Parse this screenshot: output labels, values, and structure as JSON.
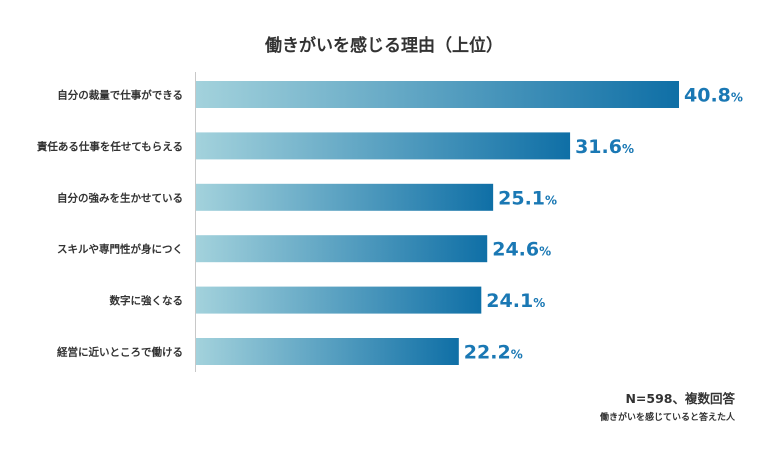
{
  "chart_data": {
    "type": "bar",
    "orientation": "horizontal",
    "title": "働きがいを感じる理由（上位）",
    "categories": [
      "自分の裁量で仕事ができる",
      "責任ある仕事を任せてもらえる",
      "自分の強みを生かせている",
      "スキルや専門性が身につく",
      "数字に強くなる",
      "経営に近いところで働ける"
    ],
    "values": [
      40.8,
      31.6,
      25.1,
      24.6,
      24.1,
      22.2
    ],
    "value_labels": [
      "40.8",
      "31.6",
      "25.1",
      "24.6",
      "24.1",
      "22.2"
    ],
    "value_suffix": "%",
    "xlim": [
      0,
      45
    ],
    "grid": false,
    "bar_gradient": [
      "#a3d2dc",
      "#0f6fa6"
    ],
    "value_color": "#1a78b4",
    "note": "N=598、複数回答",
    "subnote": "働きがいを感じていると答えた人"
  }
}
